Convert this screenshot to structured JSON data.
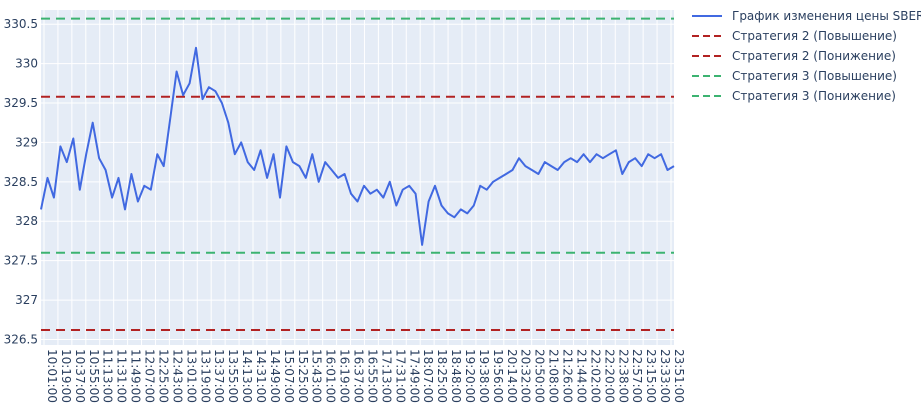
{
  "chart_data": {
    "type": "line",
    "title": "",
    "xlabel": "",
    "ylabel": "",
    "ylim": [
      326.43,
      330.68
    ],
    "yticks": [
      "326.5",
      "327",
      "327.5",
      "328",
      "328.5",
      "329",
      "329.5",
      "330",
      "330.5"
    ],
    "ytick_values": [
      326.5,
      327,
      327.5,
      328,
      328.5,
      329,
      329.5,
      330,
      330.5
    ],
    "xticks": [
      "10:01:00",
      "10:19:00",
      "10:37:00",
      "10:55:00",
      "11:13:00",
      "11:31:00",
      "11:49:00",
      "12:07:00",
      "12:25:00",
      "12:43:00",
      "13:01:00",
      "13:19:00",
      "13:37:00",
      "13:55:00",
      "14:13:00",
      "14:31:00",
      "14:49:00",
      "15:07:00",
      "15:25:00",
      "15:43:00",
      "16:01:00",
      "16:19:00",
      "16:37:00",
      "16:55:00",
      "17:13:00",
      "17:31:00",
      "17:49:00",
      "18:07:00",
      "18:25:00",
      "18:48:00",
      "19:20:00",
      "19:38:00",
      "19:56:00",
      "20:14:00",
      "20:32:00",
      "20:50:00",
      "21:08:00",
      "21:26:00",
      "21:44:00",
      "22:02:00",
      "22:20:00",
      "22:38:00",
      "22:57:00",
      "23:15:00",
      "23:33:00",
      "23:51:00"
    ],
    "grid": true,
    "legend_position": "right",
    "plot_background": "#e5ecf6",
    "series": [
      {
        "name": "График изменения цены SBER",
        "style": "solid",
        "color": "#4169e1",
        "values": [
          328.15,
          328.55,
          328.3,
          328.95,
          328.75,
          329.05,
          328.4,
          328.85,
          329.25,
          328.8,
          328.65,
          328.3,
          328.55,
          328.15,
          328.6,
          328.25,
          328.45,
          328.4,
          328.85,
          328.7,
          329.3,
          329.9,
          329.6,
          329.75,
          330.2,
          329.55,
          329.7,
          329.65,
          329.5,
          329.25,
          328.85,
          329.0,
          328.75,
          328.65,
          328.9,
          328.55,
          328.85,
          328.3,
          328.95,
          328.75,
          328.7,
          328.55,
          328.85,
          328.5,
          328.75,
          328.65,
          328.55,
          328.6,
          328.35,
          328.25,
          328.45,
          328.35,
          328.4,
          328.3,
          328.5,
          328.2,
          328.4,
          328.45,
          328.35,
          327.7,
          328.25,
          328.45,
          328.2,
          328.1,
          328.05,
          328.15,
          328.1,
          328.2,
          328.45,
          328.4,
          328.5,
          328.55,
          328.6,
          328.65,
          328.8,
          328.7,
          328.65,
          328.6,
          328.75,
          328.7,
          328.65,
          328.75,
          328.8,
          328.75,
          328.85,
          328.75,
          328.85,
          328.8,
          328.85,
          328.9,
          328.6,
          328.75,
          328.8,
          328.7,
          328.85,
          328.8,
          328.85,
          328.65,
          328.7
        ]
      },
      {
        "name": "Стратегия 2 (Повышение)",
        "style": "dash",
        "color": "#b22222",
        "values": [
          329.58
        ]
      },
      {
        "name": "Стратегия 2 (Понижение)",
        "style": "dash",
        "color": "#b22222",
        "values": [
          326.62
        ]
      },
      {
        "name": "Стратегия 3 (Повышение)",
        "style": "dash",
        "color": "#3cb371",
        "values": [
          330.57
        ]
      },
      {
        "name": "Стратегия 3 (Понижение)",
        "style": "dash",
        "color": "#3cb371",
        "values": [
          327.6
        ]
      }
    ]
  }
}
